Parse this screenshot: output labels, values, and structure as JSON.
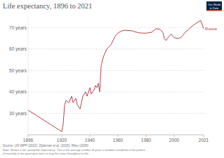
{
  "chart_data": {
    "type": "line",
    "title": "Life expectancy, 1896 to 2021",
    "logo": [
      "Our World",
      "in Data"
    ],
    "source": "Source: UN WPP (2022); Zijdeman et al. (2015); Riley (2005)",
    "note": [
      "Note: Shown is the 'period life expectancy'. This is the average number of years a newborn would live if the pattern",
      "of mortality in the given year were to stay the same throughout its life."
    ],
    "x": [
      1896,
      1920,
      1921,
      1922,
      1923,
      1925,
      1927,
      1928,
      1930,
      1931,
      1933,
      1934,
      1935,
      1937,
      1938,
      1940,
      1941,
      1943,
      1944,
      1945,
      1946,
      1947,
      1948,
      1949,
      1950,
      1952,
      1955,
      1958,
      1960,
      1963,
      1965,
      1970,
      1975,
      1980,
      1984,
      1987,
      1990,
      1992,
      1993,
      1994,
      1995,
      1996,
      1998,
      1999,
      2000,
      2003,
      2005,
      2008,
      2010,
      2012,
      2015,
      2018,
      2019,
      2020,
      2021
    ],
    "series": [
      {
        "name": "Russia",
        "color": "#b8434e",
        "values": [
          31.5,
          21.5,
          25,
          34,
          36,
          35,
          38,
          35,
          37,
          34,
          32,
          35,
          38,
          40,
          38,
          42,
          39,
          41,
          43,
          42,
          44,
          40,
          52,
          55,
          57,
          60,
          62,
          66,
          67.5,
          68.5,
          68.8,
          68.5,
          67.5,
          67.4,
          67.8,
          69.5,
          69.2,
          67.7,
          65,
          64,
          64.6,
          65.7,
          67,
          66,
          65.3,
          64.9,
          65.5,
          67.9,
          68.9,
          70.3,
          71.7,
          73,
          73.2,
          71.3,
          69.4
        ]
      }
    ],
    "xlim": [
      1896,
      2021
    ],
    "xticks": [
      1896,
      1920,
      1940,
      1960,
      1980,
      2000,
      2021
    ],
    "ylim": [
      20,
      75
    ],
    "yticks": [
      {
        "value": 30,
        "label": "30 years"
      },
      {
        "value": 40,
        "label": "40 years"
      },
      {
        "value": 50,
        "label": "50 years"
      },
      {
        "value": 60,
        "label": "60 years"
      },
      {
        "value": 70,
        "label": "70 years"
      }
    ],
    "grid": true
  }
}
